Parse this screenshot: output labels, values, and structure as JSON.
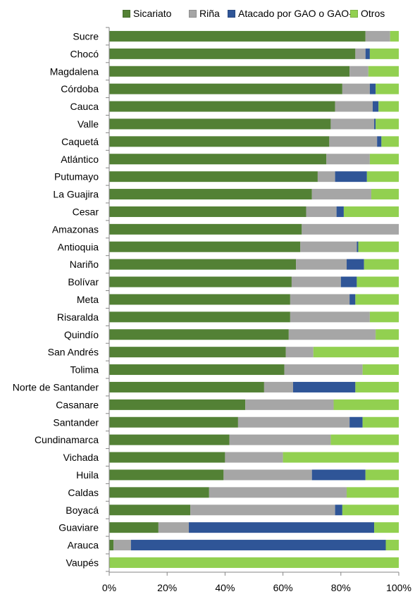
{
  "chart_data": {
    "type": "bar",
    "orientation": "horizontal",
    "stacked": true,
    "percent": true,
    "categories": [
      "Sucre",
      "Chocó",
      "Magdalena",
      "Córdoba",
      "Cauca",
      "Valle",
      "Caquetá",
      "Atlántico",
      "Putumayo",
      "La Guajira",
      "Cesar",
      "Amazonas",
      "Antioquia",
      "Nariño",
      "Bolívar",
      "Meta",
      "Risaralda",
      "Quindío",
      "San Andrés",
      "Tolima",
      "Norte de Santander",
      "Casanare",
      "Santander",
      "Cundinamarca",
      "Vichada",
      "Huila",
      "Caldas",
      "Boyacá",
      "Guaviare",
      "Arauca",
      "Vaupés"
    ],
    "series": [
      {
        "name": "Sicariato",
        "color": "#538135",
        "values": [
          88.5,
          85,
          83,
          80.5,
          78,
          76.5,
          76,
          75,
          72,
          70,
          68,
          66.5,
          66,
          64.5,
          63,
          62.5,
          62.5,
          62,
          61,
          60.5,
          53.5,
          47,
          44.5,
          41.5,
          40,
          39.5,
          34.5,
          28,
          17,
          1.5,
          0
        ]
      },
      {
        "name": "Riña",
        "color": "#a6a6a6",
        "values": [
          8.5,
          3.5,
          6.5,
          9.5,
          13,
          15,
          16.5,
          15,
          6,
          20.5,
          10.5,
          33.5,
          19.5,
          17.5,
          17,
          20.5,
          27.5,
          30,
          9.5,
          27,
          10,
          30.5,
          38.5,
          35,
          20,
          30.5,
          47.5,
          50,
          10.5,
          6,
          0
        ]
      },
      {
        "name": "Atacado por GAO o GAO-r",
        "color": "#2f5597",
        "values": [
          0,
          1.5,
          0,
          2,
          2,
          0.5,
          1.5,
          0,
          11,
          0,
          2.5,
          0,
          0.5,
          6,
          5.5,
          2,
          0,
          0,
          0,
          0,
          21.5,
          0,
          4.5,
          0,
          0,
          18.5,
          0,
          2.5,
          64,
          88,
          0
        ]
      },
      {
        "name": "Otros",
        "color": "#92d050",
        "values": [
          3,
          10,
          10.5,
          8,
          7,
          8,
          6,
          10,
          11,
          9.5,
          19,
          0,
          14,
          12,
          14.5,
          15,
          10,
          8,
          29.5,
          12.5,
          15,
          22.5,
          12.5,
          23.5,
          40,
          11.5,
          18,
          19.5,
          8.5,
          4.5,
          100
        ]
      }
    ],
    "x_ticks": [
      "0%",
      "20%",
      "40%",
      "60%",
      "80%",
      "100%"
    ],
    "xlim": [
      0,
      100
    ],
    "grid": false,
    "legend_position": "top",
    "title": "",
    "xlabel": "",
    "ylabel": ""
  }
}
